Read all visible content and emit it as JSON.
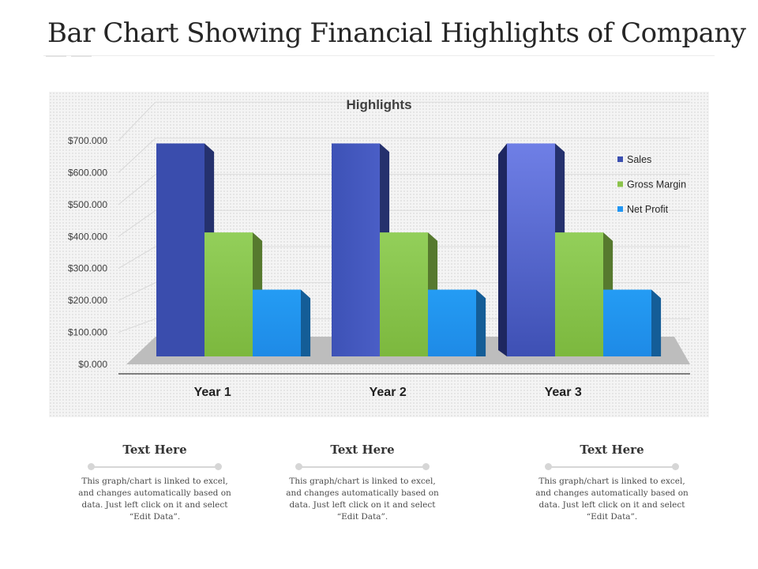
{
  "page": {
    "title": "Bar Chart Showing Financial Highlights of Company"
  },
  "chart_data": {
    "type": "bar",
    "title": "Highlights",
    "categories": [
      "Year 1",
      "Year 2",
      "Year 3"
    ],
    "series": [
      {
        "name": "Sales",
        "values": [
          670,
          670,
          670
        ],
        "color": "#3b4fb0"
      },
      {
        "name": "Gross Margin",
        "values": [
          390,
          390,
          390
        ],
        "color": "#8bc34a"
      },
      {
        "name": "Net Profit",
        "values": [
          210,
          210,
          210
        ],
        "color": "#2196f3"
      }
    ],
    "yticks": [
      "$0.000",
      "$100.000",
      "$200.000",
      "$300.000",
      "$400.000",
      "$500.000",
      "$600.000",
      "$700.000"
    ],
    "ylim": [
      0,
      700
    ],
    "grid": true,
    "legend": "right",
    "style": "3d-bar"
  },
  "captions": [
    {
      "title": "Text Here",
      "body": "This graph/chart  is linked to excel, and changes automatically based on data. Just left click on it and select “Edit Data”."
    },
    {
      "title": "Text Here",
      "body": "This graph/chart  is linked to excel, and changes automatically based on data. Just left click on it and select “Edit Data”."
    },
    {
      "title": "Text Here",
      "body": "This graph/chart  is linked to excel, and changes automatically based on data. Just left click on it and select “Edit Data”."
    }
  ]
}
